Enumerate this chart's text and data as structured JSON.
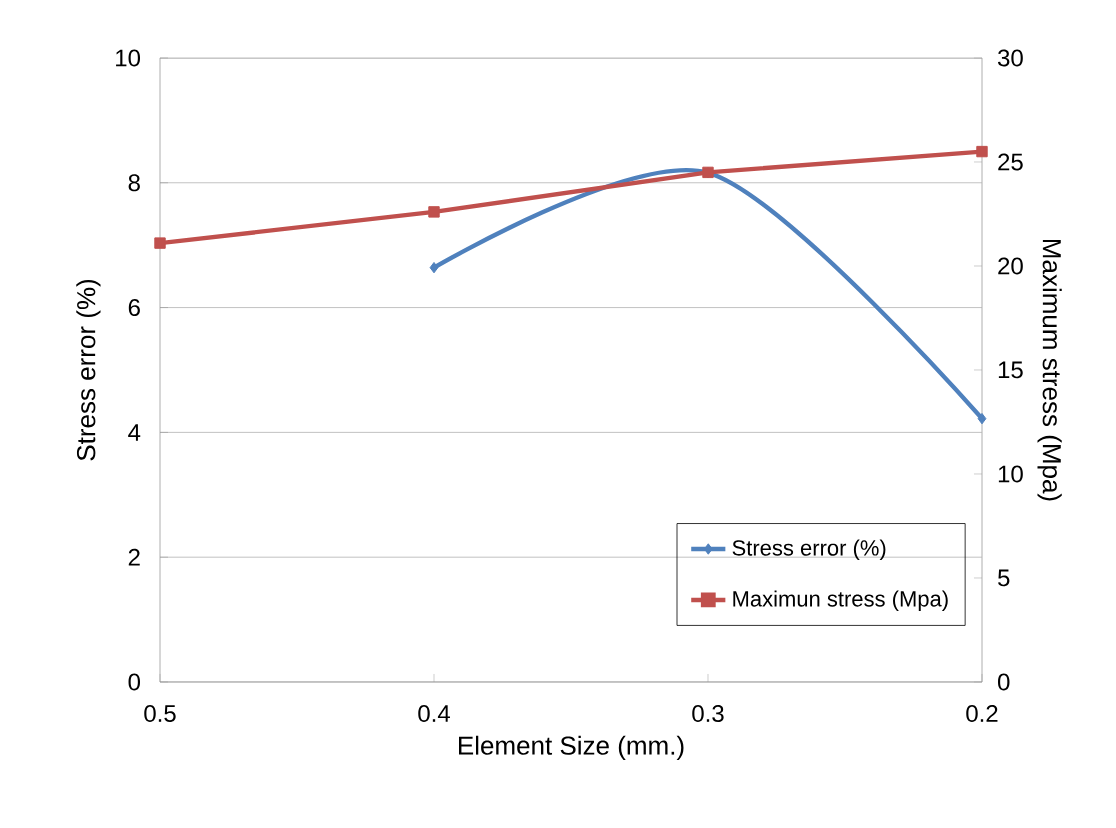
{
  "chart_data": {
    "type": "line",
    "xlabel": "Element Size (mm.)",
    "ylabel": "Stress error (%)",
    "y2label": "Maximum stress (Mpa)",
    "categories": [
      "0.5",
      "0.4",
      "0.3",
      "0.2"
    ],
    "series": [
      {
        "name": "Stress error (%)",
        "color": "#4f81bd",
        "marker": "diamond",
        "values": [
          null,
          6.64,
          8.16,
          4.22
        ]
      },
      {
        "name": "Maximun stress (Mpa)",
        "color": "#c0504d",
        "marker": "square",
        "axis": "y2",
        "values": [
          21.1,
          22.6,
          24.5,
          25.5
        ]
      }
    ],
    "ylim": [
      0,
      10
    ],
    "yticks": [
      0,
      2,
      4,
      6,
      8,
      10
    ],
    "y2lim": [
      0,
      30
    ],
    "y2ticks": [
      0,
      5,
      10,
      15,
      20,
      25,
      30
    ],
    "grid": "y",
    "legend": "bottom right"
  }
}
